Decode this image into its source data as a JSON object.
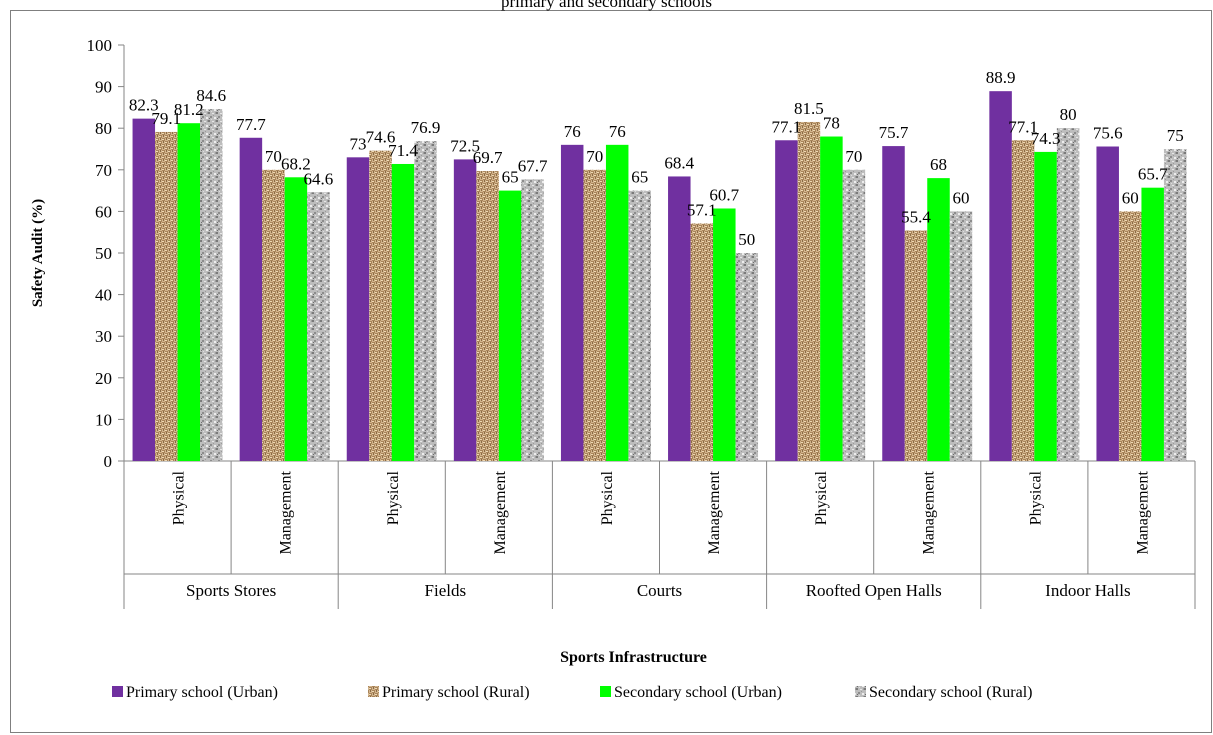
{
  "page_title": "primary and secondary schools",
  "chart_data": {
    "type": "bar",
    "title": "primary and secondary schools",
    "xlabel": "Sports Infrastructure",
    "ylabel": "Safety Audit (%)",
    "ylim": [
      0,
      100
    ],
    "y_ticks": [
      "0",
      "10",
      "20",
      "30",
      "40",
      "50",
      "60",
      "70",
      "80",
      "90",
      "100"
    ],
    "groups": [
      "Sports Stores",
      "Fields",
      "Courts",
      "Roofted Open Halls",
      "Indoor Halls"
    ],
    "subcategories": [
      "Physical",
      "Management"
    ],
    "categories": [
      "Sports Stores | Physical",
      "Sports Stores | Management",
      "Fields | Physical",
      "Fields | Management",
      "Courts | Physical",
      "Courts | Management",
      "Roofted Open Halls | Physical",
      "Roofted Open Halls | Management",
      "Indoor Halls | Physical",
      "Indoor Halls | Management"
    ],
    "series": [
      {
        "name": "Primary school (Urban)",
        "color": "#7030a0",
        "pattern": "solid",
        "values": [
          82.3,
          77.7,
          73,
          72.5,
          76,
          68.4,
          77.1,
          75.7,
          88.9,
          75.6
        ],
        "labels": [
          "82.3",
          "77.7",
          "73",
          "72.5",
          "76",
          "68.4",
          "77.1",
          "75.7",
          "88.9",
          "75.6"
        ]
      },
      {
        "name": "Primary school (Rural)",
        "color": "#c8a878",
        "pattern": "woven",
        "values": [
          79.1,
          70,
          74.6,
          69.7,
          70,
          57.1,
          81.5,
          55.4,
          77.1,
          60
        ],
        "labels": [
          "79.1",
          "70",
          "74.6",
          "69.7",
          "70",
          "57.1",
          "81.5",
          "55.4",
          "77.1",
          "60"
        ]
      },
      {
        "name": "Secondary school (Urban)",
        "color": "#00ff00",
        "pattern": "solid",
        "values": [
          81.2,
          68.2,
          71.4,
          65,
          76,
          60.7,
          78,
          68,
          74.3,
          65.7
        ],
        "labels": [
          "81.2",
          "68.2",
          "71.4",
          "65",
          "76",
          "60.7",
          "78",
          "68",
          "74.3",
          "65.7"
        ]
      },
      {
        "name": "Secondary school (Rural)",
        "color": "#a6a6a6",
        "pattern": "granite",
        "values": [
          84.6,
          64.6,
          76.9,
          67.7,
          65,
          50,
          70,
          60,
          80,
          75
        ],
        "labels": [
          "84.6",
          "64.6",
          "76.9",
          "67.7",
          "65",
          "50",
          "70",
          "60",
          "80",
          "75"
        ]
      }
    ],
    "legend_position": "bottom",
    "grid": false
  }
}
